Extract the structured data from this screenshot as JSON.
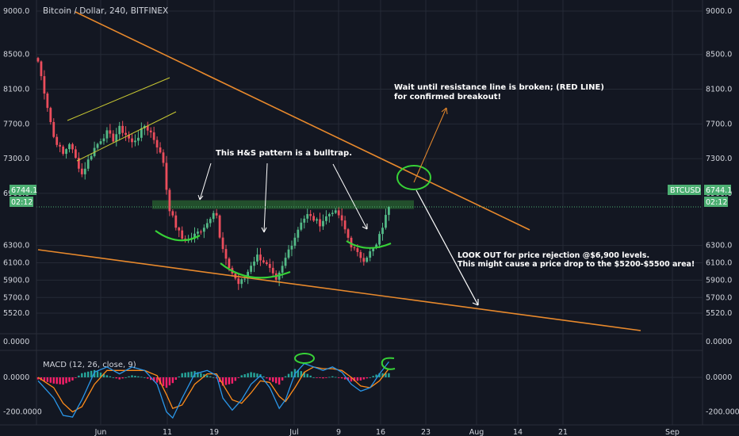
{
  "title": "Bitcoin / Dollar, 240, BITFINEX",
  "symbol": "BTCUSD",
  "current_price_label": "6744.1",
  "countdown_label": "02:12",
  "colors": {
    "background": "#131722",
    "grid": "#252a36",
    "up": "#53b987",
    "down": "#eb4d5c",
    "trendline": "#e8892c",
    "channel": "#c8c832",
    "annotation_green": "#37d137",
    "resistance_zone": "#2f7d35",
    "price_tag": "#4caf72",
    "macd_line": "#2a96e8",
    "signal_line": "#ff8c1a",
    "histogram_pos": "#26a69a",
    "histogram_neg": "#ff1f6b"
  },
  "chart_data": [
    {
      "type": "candlestick",
      "title": "Bitcoin / Dollar, 240, BITFINEX",
      "y_ticks": [
        "9000.0",
        "8500.0",
        "8100.0",
        "7700.0",
        "7300.0",
        "6900.0",
        "6300.0",
        "6100.0",
        "5900.0",
        "5700.0",
        "5520.0"
      ],
      "x_ticks": [
        "Jun",
        "11",
        "19",
        "Jul",
        "9",
        "16",
        "23",
        "Aug",
        "14",
        "21",
        "Sep"
      ],
      "ylim": [
        5450,
        9050
      ],
      "grid": true,
      "candle_path": [
        [
          0,
          8420
        ],
        [
          3,
          7900
        ],
        [
          5,
          7550
        ],
        [
          8,
          7350
        ],
        [
          10,
          7480
        ],
        [
          12,
          7300
        ],
        [
          14,
          7120
        ],
        [
          16,
          7280
        ],
        [
          18,
          7420
        ],
        [
          20,
          7520
        ],
        [
          22,
          7600
        ],
        [
          24,
          7520
        ],
        [
          26,
          7650
        ],
        [
          28,
          7580
        ],
        [
          30,
          7480
        ],
        [
          32,
          7560
        ],
        [
          34,
          7680
        ],
        [
          36,
          7600
        ],
        [
          38,
          7450
        ],
        [
          40,
          7260
        ],
        [
          41,
          6950
        ],
        [
          42,
          6720
        ],
        [
          44,
          6520
        ],
        [
          46,
          6380
        ],
        [
          48,
          6360
        ],
        [
          50,
          6420
        ],
        [
          52,
          6480
        ],
        [
          54,
          6560
        ],
        [
          56,
          6700
        ],
        [
          57,
          6650
        ],
        [
          58,
          6380
        ],
        [
          60,
          6120
        ],
        [
          62,
          5980
        ],
        [
          64,
          5860
        ],
        [
          66,
          5920
        ],
        [
          68,
          6080
        ],
        [
          70,
          6180
        ],
        [
          72,
          6120
        ],
        [
          74,
          6020
        ],
        [
          76,
          5880
        ],
        [
          78,
          6050
        ],
        [
          80,
          6250
        ],
        [
          82,
          6400
        ],
        [
          84,
          6580
        ],
        [
          86,
          6650
        ],
        [
          88,
          6600
        ],
        [
          90,
          6550
        ],
        [
          92,
          6630
        ],
        [
          94,
          6700
        ],
        [
          96,
          6650
        ],
        [
          98,
          6480
        ],
        [
          100,
          6300
        ],
        [
          102,
          6200
        ],
        [
          104,
          6140
        ],
        [
          106,
          6220
        ],
        [
          108,
          6300
        ],
        [
          110,
          6520
        ],
        [
          112,
          6744.1
        ]
      ],
      "resistance_zone": [
        6720,
        6820
      ],
      "annotations": [
        "Wait until resistance line is broken; (RED LINE)",
        "for confirmed breakout!",
        "This H&S pattern is a  bulltrap.",
        "LOOK OUT for price rejection @$6,900 levels.",
        "This might cause a price drop to the $5200-$5500 area!"
      ]
    },
    {
      "type": "macd",
      "title": "MACD (12, 26, close, 9)",
      "y_ticks": [
        "0.0000",
        "-200.0000"
      ],
      "top_scale_label": "0.0000",
      "ylim": [
        -260,
        150
      ],
      "macd_path": [
        [
          0,
          -20
        ],
        [
          5,
          -120
        ],
        [
          8,
          -220
        ],
        [
          11,
          -230
        ],
        [
          14,
          -130
        ],
        [
          18,
          30
        ],
        [
          22,
          60
        ],
        [
          26,
          20
        ],
        [
          30,
          60
        ],
        [
          34,
          40
        ],
        [
          38,
          -40
        ],
        [
          41,
          -200
        ],
        [
          43,
          -235
        ],
        [
          46,
          -120
        ],
        [
          50,
          20
        ],
        [
          54,
          40
        ],
        [
          57,
          10
        ],
        [
          59,
          -120
        ],
        [
          62,
          -190
        ],
        [
          65,
          -130
        ],
        [
          68,
          -40
        ],
        [
          71,
          10
        ],
        [
          74,
          -60
        ],
        [
          77,
          -180
        ],
        [
          79,
          -130
        ],
        [
          82,
          20
        ],
        [
          85,
          80
        ],
        [
          88,
          60
        ],
        [
          91,
          40
        ],
        [
          94,
          60
        ],
        [
          97,
          30
        ],
        [
          100,
          -40
        ],
        [
          103,
          -80
        ],
        [
          106,
          -60
        ],
        [
          109,
          20
        ],
        [
          112,
          90
        ]
      ],
      "signal_path": [
        [
          0,
          0
        ],
        [
          5,
          -60
        ],
        [
          8,
          -150
        ],
        [
          11,
          -200
        ],
        [
          14,
          -170
        ],
        [
          18,
          -40
        ],
        [
          22,
          40
        ],
        [
          26,
          40
        ],
        [
          30,
          40
        ],
        [
          34,
          40
        ],
        [
          38,
          10
        ],
        [
          41,
          -100
        ],
        [
          43,
          -180
        ],
        [
          46,
          -160
        ],
        [
          50,
          -40
        ],
        [
          54,
          20
        ],
        [
          57,
          20
        ],
        [
          59,
          -40
        ],
        [
          62,
          -130
        ],
        [
          65,
          -150
        ],
        [
          68,
          -90
        ],
        [
          71,
          -20
        ],
        [
          74,
          -30
        ],
        [
          77,
          -110
        ],
        [
          79,
          -140
        ],
        [
          82,
          -60
        ],
        [
          85,
          30
        ],
        [
          88,
          60
        ],
        [
          91,
          50
        ],
        [
          94,
          50
        ],
        [
          97,
          40
        ],
        [
          100,
          0
        ],
        [
          103,
          -50
        ],
        [
          106,
          -60
        ],
        [
          109,
          -20
        ],
        [
          112,
          50
        ]
      ]
    }
  ]
}
